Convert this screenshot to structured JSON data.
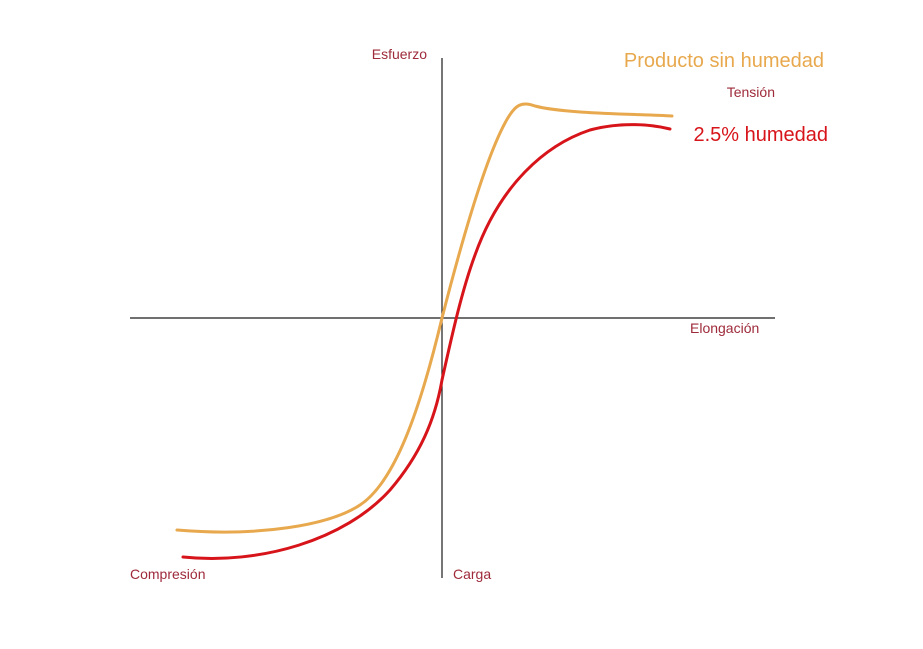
{
  "labels": {
    "stress": "Esfuerzo",
    "elongation": "Elongación",
    "tension": "Tensión",
    "compression": "Compresión",
    "load": "Carga"
  },
  "series": {
    "dry": {
      "name": "Producto sin humedad",
      "color": "#e8a94e"
    },
    "wet": {
      "name": "2.5% humedad",
      "color": "#d7141a"
    }
  },
  "colors": {
    "axis_label": "#9e2a3a",
    "axis_line": "#1a1a1a"
  }
}
